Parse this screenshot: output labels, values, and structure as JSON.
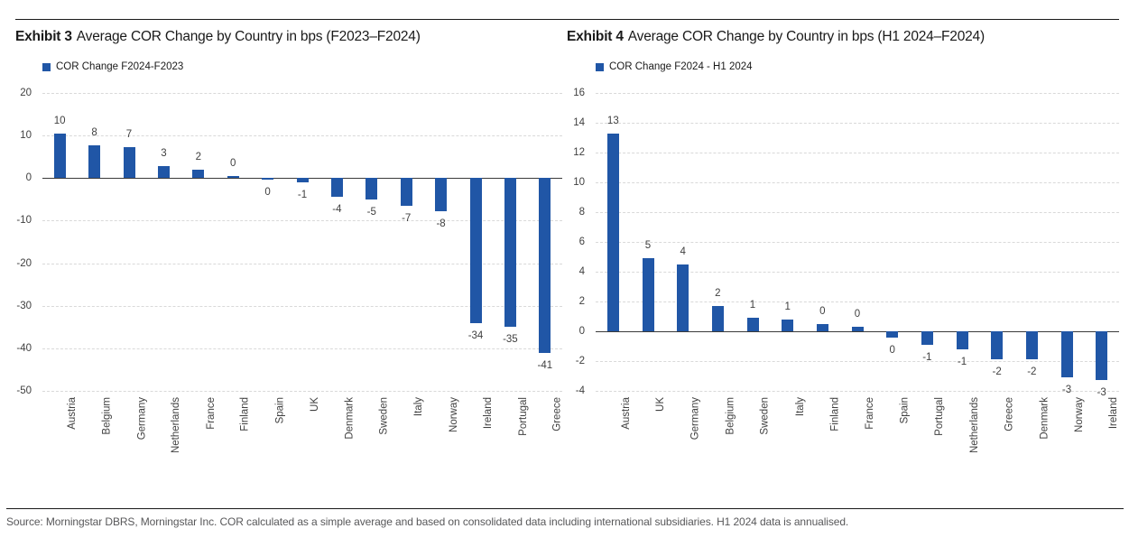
{
  "colors": {
    "bar_blue": "#2056a6",
    "gridline": "#d9d9d9",
    "axis_line": "#3a3a3a",
    "title_text": "#1a1a1a",
    "muted_text": "#58585a"
  },
  "footer": {
    "source": "Source: Morningstar DBRS, Morningstar Inc. COR calculated as a simple average and based on consolidated data including international subsidiaries. H1 2024 data is annualised."
  },
  "chart_data": [
    {
      "type": "bar",
      "exhibit_label": "Exhibit 3",
      "title": "Average COR Change by Country in bps (F2023–F2024)",
      "legend_label": "COR Change F2024-F2023",
      "ylabel": "",
      "xlabel": "",
      "ylim": [
        -50,
        20
      ],
      "ytick_step": 10,
      "yticks": [
        20,
        10,
        0,
        -10,
        -20,
        -30,
        -40,
        -50
      ],
      "grid": true,
      "legend_position": "top-left",
      "categories": [
        "Austria",
        "Belgium",
        "Germany",
        "Netherlands",
        "France",
        "Finland",
        "Spain",
        "UK",
        "Denmark",
        "Sweden",
        "Italy",
        "Norway",
        "Ireland",
        "Portugal",
        "Greece"
      ],
      "values": [
        10.4,
        7.7,
        7.2,
        2.8,
        1.9,
        0.4,
        -0.4,
        -1.1,
        -4.4,
        -5.0,
        -6.6,
        -7.7,
        -34,
        -35,
        -41
      ],
      "labels": [
        "10",
        "8",
        "7",
        "3",
        "2",
        "0",
        "0",
        "-1",
        "-4",
        "-5",
        "-7",
        "-8",
        "-34",
        "-35",
        "-41"
      ]
    },
    {
      "type": "bar",
      "exhibit_label": "Exhibit 4",
      "title": "Average COR Change by Country in bps (H1 2024–F2024)",
      "legend_label": "COR Change F2024 - H1 2024",
      "ylabel": "",
      "xlabel": "",
      "ylim": [
        -4,
        16
      ],
      "ytick_step": 2,
      "yticks": [
        16,
        14,
        12,
        10,
        8,
        6,
        4,
        2,
        0,
        -2,
        -4
      ],
      "grid": true,
      "legend_position": "top-left",
      "categories": [
        "Austria",
        "UK",
        "Germany",
        "Belgium",
        "Sweden",
        "Italy",
        "Finland",
        "France",
        "Spain",
        "Portugal",
        "Netherlands",
        "Greece",
        "Denmark",
        "Norway",
        "Ireland"
      ],
      "values": [
        13.3,
        4.9,
        4.5,
        1.7,
        0.9,
        0.8,
        0.5,
        0.3,
        -0.4,
        -0.9,
        -1.2,
        -1.9,
        -1.9,
        -3.1,
        -3.3
      ],
      "labels": [
        "13",
        "5",
        "4",
        "2",
        "1",
        "1",
        "0",
        "0",
        "0",
        "-1",
        "-1",
        "-2",
        "-2",
        "-3",
        "-3"
      ]
    }
  ]
}
